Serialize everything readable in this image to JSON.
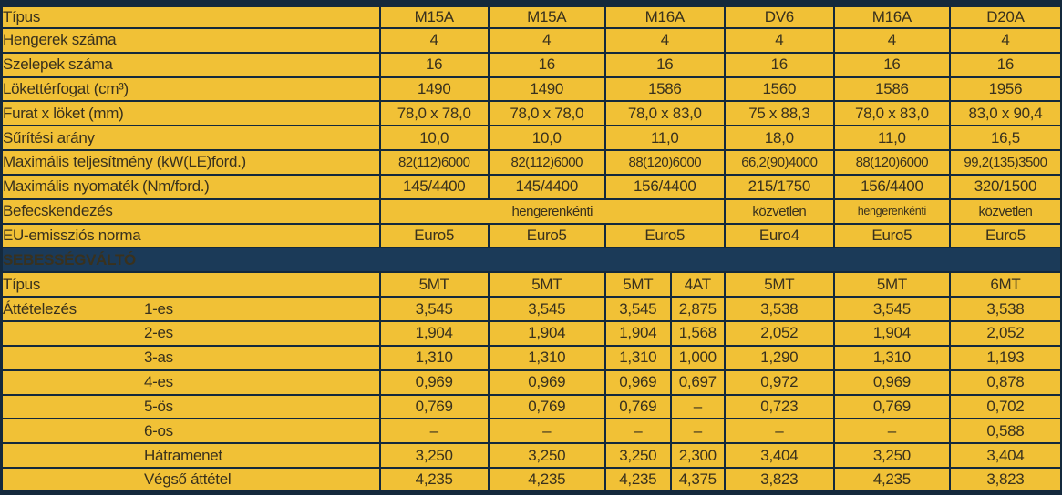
{
  "colors": {
    "yellow": "#F1C136",
    "navy": "#14293C",
    "section_navy": "#1B3A58",
    "text": "#39311D",
    "section_text": "#FFFFFF"
  },
  "chart_data": {
    "type": "table",
    "title": "",
    "engine_columns": [
      "M15A",
      "M15A",
      "M16A",
      "DV6",
      "M16A",
      "D20A"
    ],
    "gearbox_columns": [
      "5MT",
      "5MT",
      "5MT",
      "4AT",
      "5MT",
      "5MT",
      "6MT"
    ]
  },
  "table": {
    "rows": [
      {
        "label": "Típus",
        "cells": [
          "M15A",
          "M15A",
          "M16A",
          "DV6",
          "M16A",
          "D20A"
        ]
      },
      {
        "label": "Hengerek száma",
        "cells": [
          "4",
          "4",
          "4",
          "4",
          "4",
          "4"
        ]
      },
      {
        "label": "Szelepek száma",
        "cells": [
          "16",
          "16",
          "16",
          "16",
          "16",
          "16"
        ]
      },
      {
        "label": "Lökettérfogat (cm³)",
        "cells": [
          "1490",
          "1490",
          "1586",
          "1560",
          "1586",
          "1956"
        ]
      },
      {
        "label": "Furat x löket (mm)",
        "cells": [
          "78,0 x 78,0",
          "78,0 x 78,0",
          "78,0 x 83,0",
          "75 x 88,3",
          "78,0 x 83,0",
          "83,0 x 90,4"
        ]
      },
      {
        "label": "Sűrítési arány",
        "cells": [
          "10,0",
          "10,0",
          "11,0",
          "18,0",
          "11,0",
          "16,5"
        ]
      },
      {
        "label": "Maximális teljesítmény (kW(LE)ford.)",
        "cells": [
          "82(112)6000",
          "82(112)6000",
          "88(120)6000",
          "66,2(90)4000",
          "88(120)6000",
          "99,2(135)3500"
        ],
        "cell_class": [
          "md",
          "md",
          "md",
          "md",
          "md",
          "md"
        ]
      },
      {
        "label": "Maximális nyomaték (Nm/ford.)",
        "cells": [
          "145/4400",
          "145/4400",
          "156/4400",
          "215/1750",
          "156/4400",
          "320/1500"
        ]
      },
      {
        "label": "Befecskendezés",
        "cells": [
          "hengerenkénti",
          "közvetlen",
          "hengerenkénti",
          "közvetlen"
        ],
        "colspans": [
          4,
          1,
          1,
          1
        ],
        "cell_class": [
          "md",
          "md",
          "sm",
          "md"
        ]
      },
      {
        "label": "EU-emissziós norma",
        "cells": [
          "Euro5",
          "Euro5",
          "Euro5",
          "Euro4",
          "Euro5",
          "Euro5"
        ]
      },
      {
        "section": "SEBESSÉGVÁLTÓ"
      },
      {
        "label": "Típus",
        "cells": [
          "5MT",
          "5MT",
          "5MT",
          "4AT",
          "5MT",
          "5MT",
          "6MT"
        ]
      },
      {
        "group": "Áttételezés",
        "indent": true,
        "label": "1-es",
        "cells": [
          "3,545",
          "3,545",
          "3,545",
          "2,875",
          "3,538",
          "3,545",
          "3,538"
        ]
      },
      {
        "indent": true,
        "label": "2-es",
        "cells": [
          "1,904",
          "1,904",
          "1,904",
          "1,568",
          "2,052",
          "1,904",
          "2,052"
        ]
      },
      {
        "indent": true,
        "label": "3-as",
        "cells": [
          "1,310",
          "1,310",
          "1,310",
          "1,000",
          "1,290",
          "1,310",
          "1,193"
        ]
      },
      {
        "indent": true,
        "label": "4-es",
        "cells": [
          "0,969",
          "0,969",
          "0,969",
          "0,697",
          "0,972",
          "0,969",
          "0,878"
        ]
      },
      {
        "indent": true,
        "label": "5-ös",
        "cells": [
          "0,769",
          "0,769",
          "0,769",
          "–",
          "0,723",
          "0,769",
          "0,702"
        ]
      },
      {
        "indent": true,
        "label": "6-os",
        "cells": [
          "–",
          "–",
          "–",
          "–",
          "–",
          "–",
          "0,588"
        ]
      },
      {
        "indent": true,
        "label": "Hátramenet",
        "cells": [
          "3,250",
          "3,250",
          "3,250",
          "2,300",
          "3,404",
          "3,250",
          "3,404"
        ]
      },
      {
        "indent": true,
        "label": "Végső áttétel",
        "cells": [
          "4,235",
          "4,235",
          "4,235",
          "4,375",
          "3,823",
          "4,235",
          "3,823"
        ]
      }
    ]
  }
}
